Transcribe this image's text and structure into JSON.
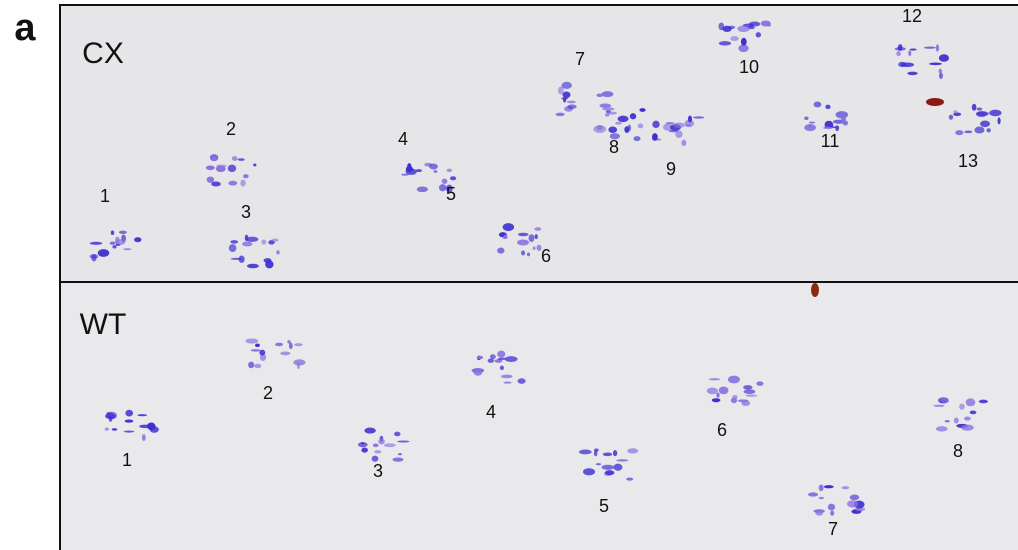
{
  "panel_label": "a",
  "panels": [
    {
      "title": "CX",
      "labels": [
        "1",
        "2",
        "3",
        "4",
        "5",
        "6",
        "7",
        "8",
        "9",
        "10",
        "11",
        "12",
        "13"
      ]
    },
    {
      "title": "WT",
      "labels": [
        "1",
        "2",
        "3",
        "4",
        "5",
        "6",
        "7",
        "8"
      ]
    }
  ]
}
